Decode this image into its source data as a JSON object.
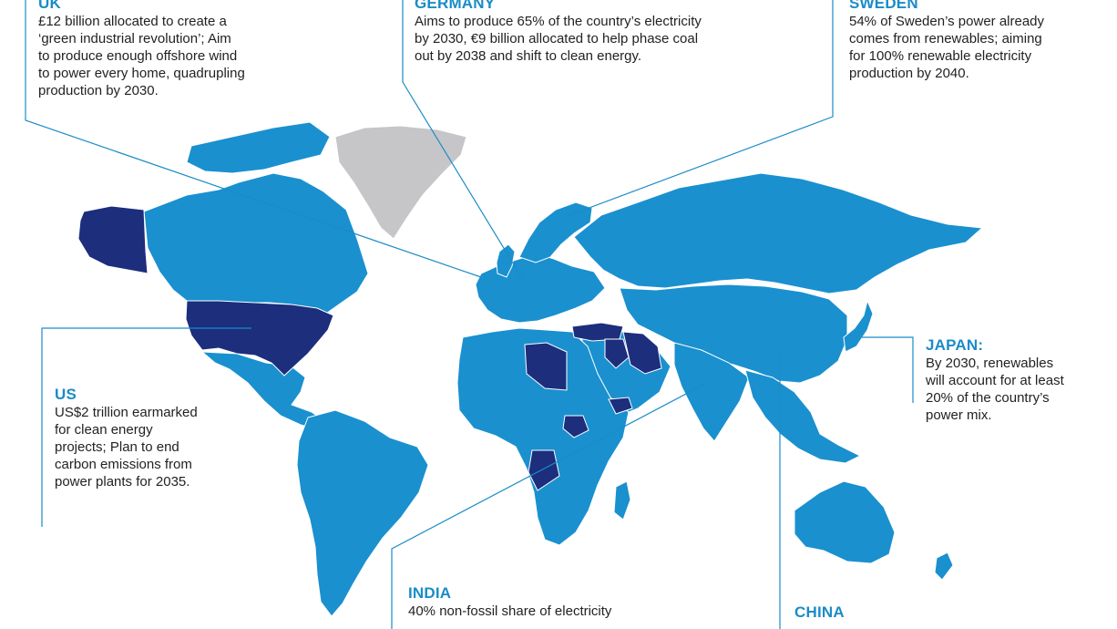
{
  "colors": {
    "accent": "#1a8cc7",
    "land": "#1a90cf",
    "highlight": "#1c2e7c",
    "greenland": "#c6c6c8",
    "border": "#ffffff",
    "leader": "#1a8cc7",
    "body_text": "#222222"
  },
  "callouts": {
    "uk": {
      "title": "UK",
      "body": "£12 billion allocated to create a\n‘green industrial revolution’; Aim\nto produce enough offshore wind\nto power every home, quadrupling\nproduction by 2030."
    },
    "germany": {
      "title": "GERMANY",
      "body": "Aims to produce 65% of the country’s electricity\nby 2030, €9 billion allocated to help phase coal\nout by 2038 and shift to clean energy."
    },
    "sweden": {
      "title": "SWEDEN",
      "body": "54% of Sweden’s power already\ncomes from renewables; aiming\nfor 100% renewable electricity\nproduction by 2040."
    },
    "us": {
      "title": "US",
      "body": "US$2 trillion earmarked\nfor clean energy\nprojects; Plan to end\ncarbon emissions from\npower plants for 2035."
    },
    "japan": {
      "title": "JAPAN:",
      "body": "By 2030, renewables\nwill account for at least\n20% of the country’s\npower mix."
    },
    "india": {
      "title": "INDIA",
      "body": "40% non-fossil share of electricity"
    },
    "china": {
      "title": "CHINA",
      "body": ""
    }
  },
  "highlighted_regions": [
    "alaska",
    "usa",
    "libya",
    "turkey",
    "iraq",
    "iran",
    "yemen",
    "south-sudan",
    "angola"
  ],
  "neutral_regions": [
    "greenland"
  ]
}
